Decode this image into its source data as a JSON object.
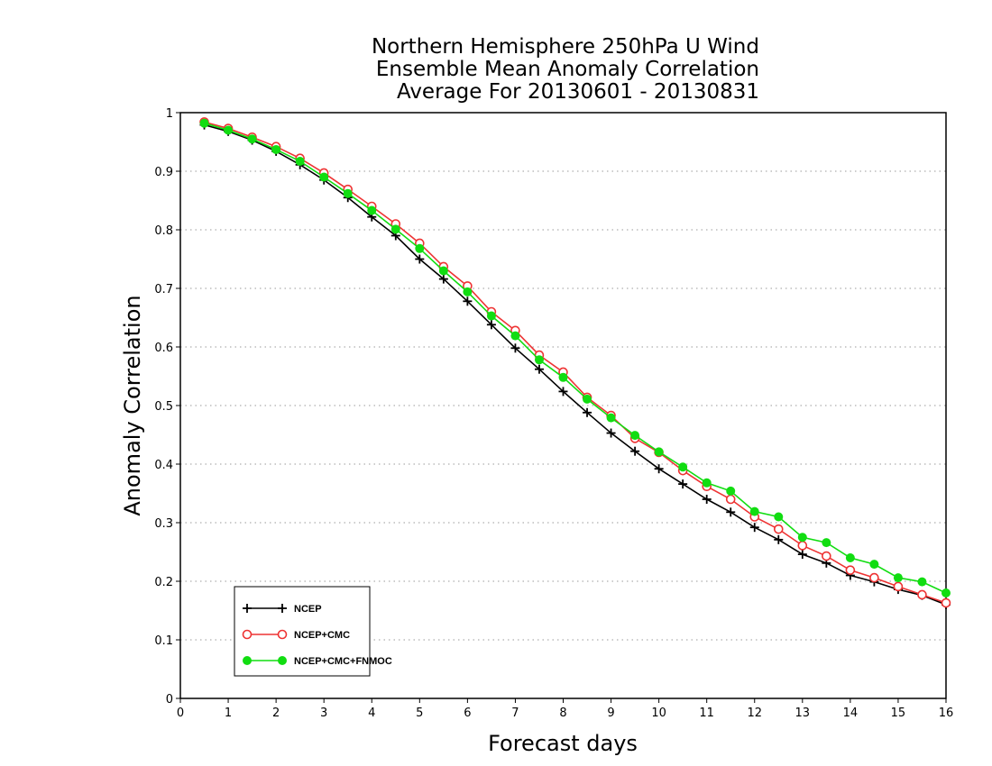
{
  "chart_data": {
    "type": "line",
    "title": [
      "Northern Hemisphere 250hPa U Wind",
      "Ensemble Mean Anomaly Correlation",
      "Average For 20130601 - 20130831"
    ],
    "xlabel": "Forecast days",
    "ylabel": "Anomaly Correlation",
    "xlim": [
      0,
      16
    ],
    "ylim": [
      0,
      1
    ],
    "xticks": [
      "0",
      "1",
      "2",
      "3",
      "4",
      "5",
      "6",
      "7",
      "8",
      "9",
      "10",
      "11",
      "12",
      "13",
      "14",
      "15",
      "16"
    ],
    "yticks": [
      "0",
      "0.1",
      "0.2",
      "0.3",
      "0.4",
      "0.5",
      "0.6",
      "0.7",
      "0.8",
      "0.9",
      "1"
    ],
    "grid": "horizontal dotted",
    "legend_position": "bottom-left",
    "x": [
      0.5,
      1,
      1.5,
      2,
      2.5,
      3,
      3.5,
      4,
      4.5,
      5,
      5.5,
      6,
      6.5,
      7,
      7.5,
      8,
      8.5,
      9,
      9.5,
      10,
      10.5,
      11,
      11.5,
      12,
      12.5,
      13,
      13.5,
      14,
      14.5,
      15,
      15.5,
      16
    ],
    "series": [
      {
        "name": "NCEP",
        "color": "#000000",
        "marker": "plus",
        "values": [
          0.979,
          0.968,
          0.953,
          0.934,
          0.911,
          0.885,
          0.855,
          0.822,
          0.79,
          0.75,
          0.716,
          0.678,
          0.638,
          0.598,
          0.562,
          0.524,
          0.488,
          0.453,
          0.422,
          0.392,
          0.366,
          0.34,
          0.318,
          0.292,
          0.271,
          0.246,
          0.231,
          0.21,
          0.199,
          0.186,
          0.176,
          0.16
        ]
      },
      {
        "name": "NCEP+CMC",
        "color": "#ee3333",
        "marker": "open-circle",
        "values": [
          0.984,
          0.973,
          0.958,
          0.942,
          0.922,
          0.897,
          0.869,
          0.84,
          0.81,
          0.777,
          0.737,
          0.704,
          0.66,
          0.628,
          0.586,
          0.557,
          0.514,
          0.483,
          0.444,
          0.42,
          0.389,
          0.362,
          0.34,
          0.31,
          0.289,
          0.261,
          0.243,
          0.219,
          0.206,
          0.191,
          0.177,
          0.163
        ]
      },
      {
        "name": "NCEP+CMC+FNMOC",
        "color": "#11dd11",
        "marker": "filled-circle",
        "values": [
          0.982,
          0.97,
          0.955,
          0.937,
          0.917,
          0.89,
          0.862,
          0.833,
          0.801,
          0.768,
          0.73,
          0.694,
          0.653,
          0.619,
          0.578,
          0.548,
          0.511,
          0.479,
          0.449,
          0.421,
          0.395,
          0.368,
          0.354,
          0.319,
          0.31,
          0.275,
          0.266,
          0.24,
          0.229,
          0.206,
          0.199,
          0.18
        ]
      }
    ]
  }
}
